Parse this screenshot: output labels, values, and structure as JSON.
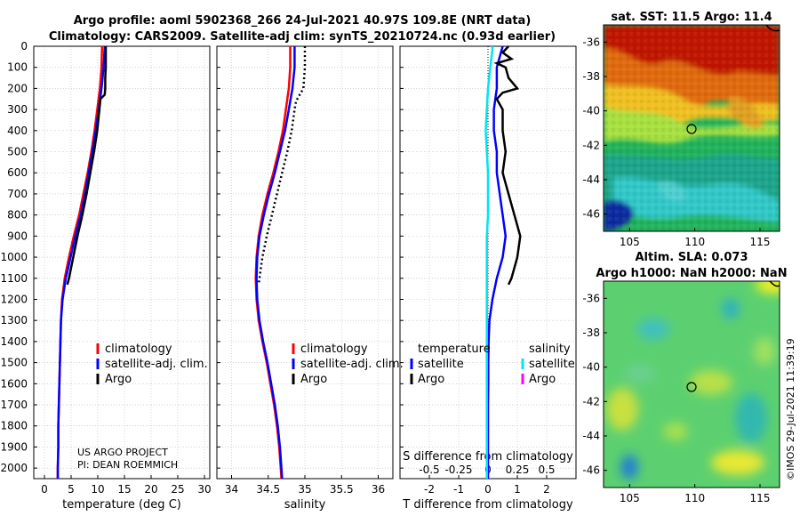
{
  "titles": {
    "line1": "Argo profile: aoml 5902368_266 24-Jul-2021 40.97S 109.8E (NRT data)",
    "line2": "Climatology: CARS2009. Satellite-adj clim: synTS_20210724.nc (0.93d earlier)"
  },
  "credit": {
    "project": "US ARGO PROJECT",
    "pi": "PI: DEAN ROEMMICH",
    "imos": "©IMOS 29-Jul-2021 11:39:19"
  },
  "colors": {
    "climatology": "#ff0000",
    "satellite": "#0000ff",
    "argo": "#000000",
    "sal_satellite": "#00e5ee",
    "sal_argo": "#ff00ff",
    "grid": "#b8b8b8"
  },
  "depth_ticks": [
    "0",
    "100",
    "200",
    "300",
    "400",
    "500",
    "600",
    "700",
    "800",
    "900",
    "1000",
    "1100",
    "1200",
    "1300",
    "1400",
    "1500",
    "1600",
    "1700",
    "1800",
    "1900",
    "2000"
  ],
  "legend_main": {
    "climatology": "climatology",
    "satellite": "satellite-adj. clim.",
    "argo": "Argo"
  },
  "legend_diff": {
    "temp_header": "temperature",
    "sal_header": "salinity",
    "satellite": "satellite",
    "argo": "Argo"
  },
  "chart_data": [
    {
      "type": "line",
      "panel": "temperature",
      "xlabel": "temperature (deg C)",
      "ylabel": "depth",
      "xlim": [
        -2,
        31
      ],
      "ylim": [
        2050,
        0
      ],
      "xticks": [
        "0",
        "5",
        "10",
        "15",
        "20",
        "25",
        "30"
      ],
      "xtick_values": [
        0,
        5,
        10,
        15,
        20,
        25,
        30
      ],
      "grid": true,
      "series": [
        {
          "name": "climatology",
          "color": "#ff0000",
          "depth": [
            0,
            100,
            200,
            300,
            400,
            500,
            600,
            700,
            800,
            900,
            1000,
            1100,
            1200,
            1300,
            1400,
            1500,
            1600,
            1700,
            1800,
            1900,
            2000,
            2050
          ],
          "values": [
            10.8,
            10.7,
            10.4,
            9.9,
            9.4,
            8.8,
            8.1,
            7.3,
            6.5,
            5.5,
            4.6,
            3.8,
            3.3,
            3.1,
            3.0,
            2.9,
            2.8,
            2.7,
            2.6,
            2.6,
            2.5,
            2.5
          ]
        },
        {
          "name": "satellite-adj. clim.",
          "color": "#0000ff",
          "depth": [
            0,
            100,
            200,
            300,
            400,
            500,
            600,
            700,
            800,
            900,
            1000,
            1100,
            1200,
            1300,
            1400,
            1500,
            1600,
            1700,
            1800,
            1900,
            2000,
            2050
          ],
          "values": [
            11.3,
            11.1,
            10.7,
            10.2,
            9.6,
            9.0,
            8.3,
            7.6,
            6.8,
            5.8,
            4.9,
            4.0,
            3.4,
            3.1,
            3.0,
            2.9,
            2.8,
            2.7,
            2.6,
            2.6,
            2.5,
            2.5
          ]
        },
        {
          "name": "Argo",
          "color": "#000000",
          "depth": [
            0,
            50,
            100,
            150,
            200,
            230,
            250,
            300,
            400,
            500,
            600,
            700,
            800,
            900,
            1000,
            1050,
            1100,
            1130
          ],
          "values": [
            11.5,
            11.5,
            11.5,
            11.4,
            11.4,
            11.3,
            10.5,
            10.3,
            9.9,
            9.3,
            8.6,
            7.9,
            7.1,
            6.2,
            5.4,
            5.0,
            4.6,
            4.3
          ]
        }
      ]
    },
    {
      "type": "line",
      "panel": "salinity",
      "xlabel": "salinity",
      "ylabel": "depth",
      "xlim": [
        33.8,
        36.2
      ],
      "ylim": [
        2050,
        0
      ],
      "xticks": [
        "34",
        "34.5",
        "35",
        "35.5",
        "36"
      ],
      "xtick_values": [
        34,
        34.5,
        35,
        35.5,
        36
      ],
      "grid": true,
      "series": [
        {
          "name": "climatology",
          "color": "#ff0000",
          "depth": [
            0,
            100,
            200,
            300,
            400,
            500,
            600,
            700,
            800,
            900,
            1000,
            1100,
            1200,
            1300,
            1400,
            1500,
            1600,
            1700,
            1800,
            1900,
            2000,
            2050
          ],
          "values": [
            34.8,
            34.8,
            34.78,
            34.74,
            34.7,
            34.64,
            34.57,
            34.49,
            34.42,
            34.37,
            34.34,
            34.33,
            34.34,
            34.37,
            34.42,
            34.48,
            34.53,
            34.58,
            34.62,
            34.65,
            34.67,
            34.68
          ]
        },
        {
          "name": "satellite-adj. clim.",
          "color": "#0000ff",
          "depth": [
            0,
            100,
            200,
            300,
            400,
            500,
            600,
            700,
            800,
            900,
            1000,
            1100,
            1200,
            1300,
            1400,
            1500,
            1600,
            1700,
            1800,
            1900,
            2000,
            2050
          ],
          "values": [
            34.86,
            34.86,
            34.83,
            34.78,
            34.73,
            34.66,
            34.59,
            34.51,
            34.44,
            34.38,
            34.35,
            34.34,
            34.35,
            34.38,
            34.43,
            34.49,
            34.54,
            34.59,
            34.63,
            34.66,
            34.68,
            34.69
          ]
        },
        {
          "name": "Argo",
          "color": "#000000",
          "depth": [
            0,
            100,
            200,
            230,
            260,
            300,
            400,
            500,
            600,
            700,
            800,
            900,
            1000,
            1100,
            1130
          ],
          "values": [
            35.0,
            35.0,
            34.98,
            34.93,
            34.88,
            34.86,
            34.82,
            34.76,
            34.69,
            34.62,
            34.55,
            34.48,
            34.42,
            34.38,
            34.37
          ]
        }
      ]
    },
    {
      "type": "line",
      "panel": "difference",
      "xlabel": "T difference from climatology",
      "xlabel_top": "S difference from climatology",
      "xlim": [
        -3,
        3
      ],
      "ylim": [
        2050,
        0
      ],
      "xticks": [
        "-2",
        "-1",
        "0",
        "1",
        "2"
      ],
      "xtick_values": [
        -2,
        -1,
        0,
        1,
        2
      ],
      "s_xticks": [
        "-0.5",
        "-0.25",
        "0",
        "0.25",
        "0.5"
      ],
      "s_xtick_values": [
        -0.5,
        -0.25,
        0,
        0.25,
        0.5
      ],
      "grid": true,
      "series": [
        {
          "name": "temperature satellite",
          "color": "#0000ff",
          "depth": [
            0,
            50,
            100,
            200,
            300,
            400,
            500,
            600,
            700,
            800,
            900,
            1000,
            1100,
            1200,
            1300,
            1400,
            1500,
            1600,
            1700,
            1800,
            1900,
            2000,
            2050
          ],
          "values": [
            0.5,
            0.4,
            0.3,
            0.3,
            0.2,
            0.2,
            0.3,
            0.3,
            0.4,
            0.5,
            0.6,
            0.5,
            0.3,
            0.15,
            0.05,
            0.02,
            0.01,
            0.01,
            0.0,
            0.0,
            0.0,
            0.0,
            0.0
          ]
        },
        {
          "name": "temperature Argo",
          "color": "#000000",
          "depth": [
            0,
            30,
            60,
            80,
            100,
            150,
            200,
            220,
            250,
            300,
            400,
            500,
            600,
            700,
            800,
            900,
            1000,
            1050,
            1100,
            1130
          ],
          "values": [
            0.7,
            0.5,
            0.8,
            0.3,
            0.6,
            0.7,
            1.0,
            0.5,
            0.3,
            0.5,
            0.5,
            0.6,
            0.5,
            0.7,
            0.9,
            1.1,
            1.0,
            0.9,
            0.8,
            0.7
          ]
        },
        {
          "name": "salinity satellite",
          "color": "#00e5ee",
          "depth": [
            0,
            50,
            100,
            200,
            300,
            400,
            500,
            600,
            700,
            800,
            900,
            1000,
            1100,
            1200,
            1300,
            1400,
            1500,
            1600,
            1700,
            1800,
            1900,
            2000,
            2050
          ],
          "values": [
            0.04,
            0.03,
            0.02,
            0.0,
            -0.01,
            -0.02,
            -0.01,
            0.0,
            0.0,
            0.0,
            -0.01,
            -0.01,
            -0.01,
            -0.01,
            -0.01,
            -0.01,
            -0.01,
            -0.01,
            -0.01,
            -0.01,
            -0.01,
            -0.01,
            -0.01
          ]
        },
        {
          "name": "salinity Argo",
          "color": "#ff00ff",
          "depth": [],
          "values": []
        }
      ]
    },
    {
      "type": "heatmap",
      "panel": "sst_map",
      "title": "sat. SST: 11.5 Argo: 11.4",
      "xlim": [
        103,
        116.5
      ],
      "ylim": [
        -47,
        -35
      ],
      "xticks": [
        "105",
        "110",
        "115"
      ],
      "xtick_values": [
        105,
        110,
        115
      ],
      "yticks": [
        "-36",
        "-38",
        "-40",
        "-42",
        "-44",
        "-46"
      ],
      "ytick_values": [
        -36,
        -38,
        -40,
        -42,
        -44,
        -46
      ],
      "marker": {
        "lon": 109.8,
        "lat": -40.97
      }
    },
    {
      "type": "heatmap",
      "panel": "sla_map",
      "title": "Altim. SLA: 0.073",
      "subtitle": "Argo h1000: NaN h2000: NaN",
      "xlim": [
        103,
        116.5
      ],
      "ylim": [
        -47,
        -35
      ],
      "xticks": [
        "105",
        "110",
        "115"
      ],
      "xtick_values": [
        105,
        110,
        115
      ],
      "yticks": [
        "-36",
        "-38",
        "-40",
        "-42",
        "-44",
        "-46"
      ],
      "ytick_values": [
        -36,
        -38,
        -40,
        -42,
        -44,
        -46
      ],
      "marker": {
        "lon": 109.8,
        "lat": -40.97
      }
    }
  ]
}
